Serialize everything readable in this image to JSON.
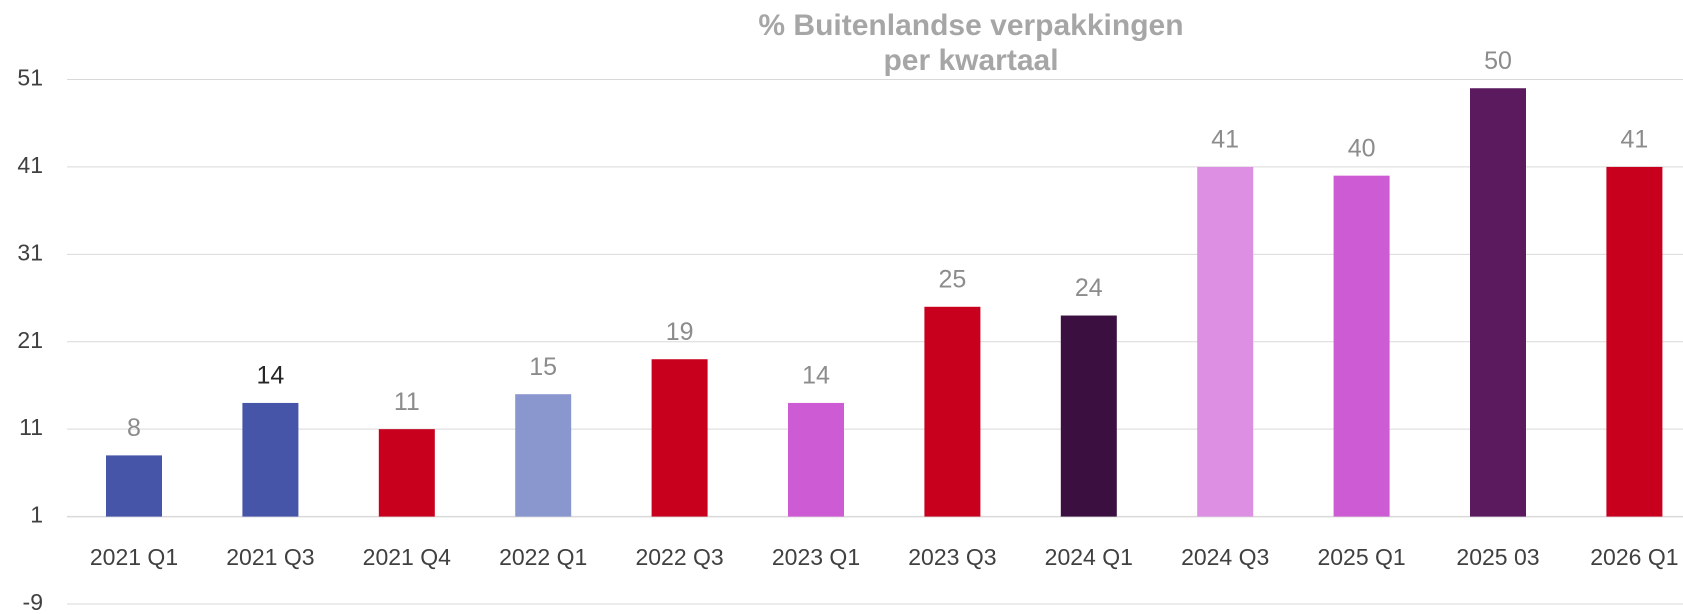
{
  "chart_data": {
    "type": "bar",
    "title": [
      "% Buitenlandse verpakkingen",
      "per kwartaal"
    ],
    "categories": [
      "2021 Q1",
      "2021 Q3",
      "2021 Q4",
      "2022 Q1",
      "2022 Q3",
      "2023 Q1",
      "2023 Q3",
      "2024 Q1",
      "2024 Q3",
      "2025 Q1",
      "2025 03",
      "2026 Q1"
    ],
    "values": [
      8,
      14,
      11,
      15,
      19,
      14,
      25,
      24,
      41,
      40,
      50,
      41
    ],
    "colors": [
      "#4655a8",
      "#4655a8",
      "#c8001e",
      "#8a97cf",
      "#c8001e",
      "#cc5bd4",
      "#c8001e",
      "#3b1040",
      "#dd8fe3",
      "#cc5bd4",
      "#5b1a5e",
      "#c8001e"
    ],
    "value_label_colors": [
      "#8c8c8c",
      "#262626",
      "#8c8c8c",
      "#8c8c8c",
      "#8c8c8c",
      "#8c8c8c",
      "#8c8c8c",
      "#8c8c8c",
      "#8c8c8c",
      "#8c8c8c",
      "#8c8c8c",
      "#8c8c8c"
    ],
    "ylim": [
      -9,
      51
    ],
    "yticks": [
      -9,
      1,
      11,
      21,
      31,
      41,
      51
    ],
    "x_axis_crosses": 1,
    "grid": true
  }
}
